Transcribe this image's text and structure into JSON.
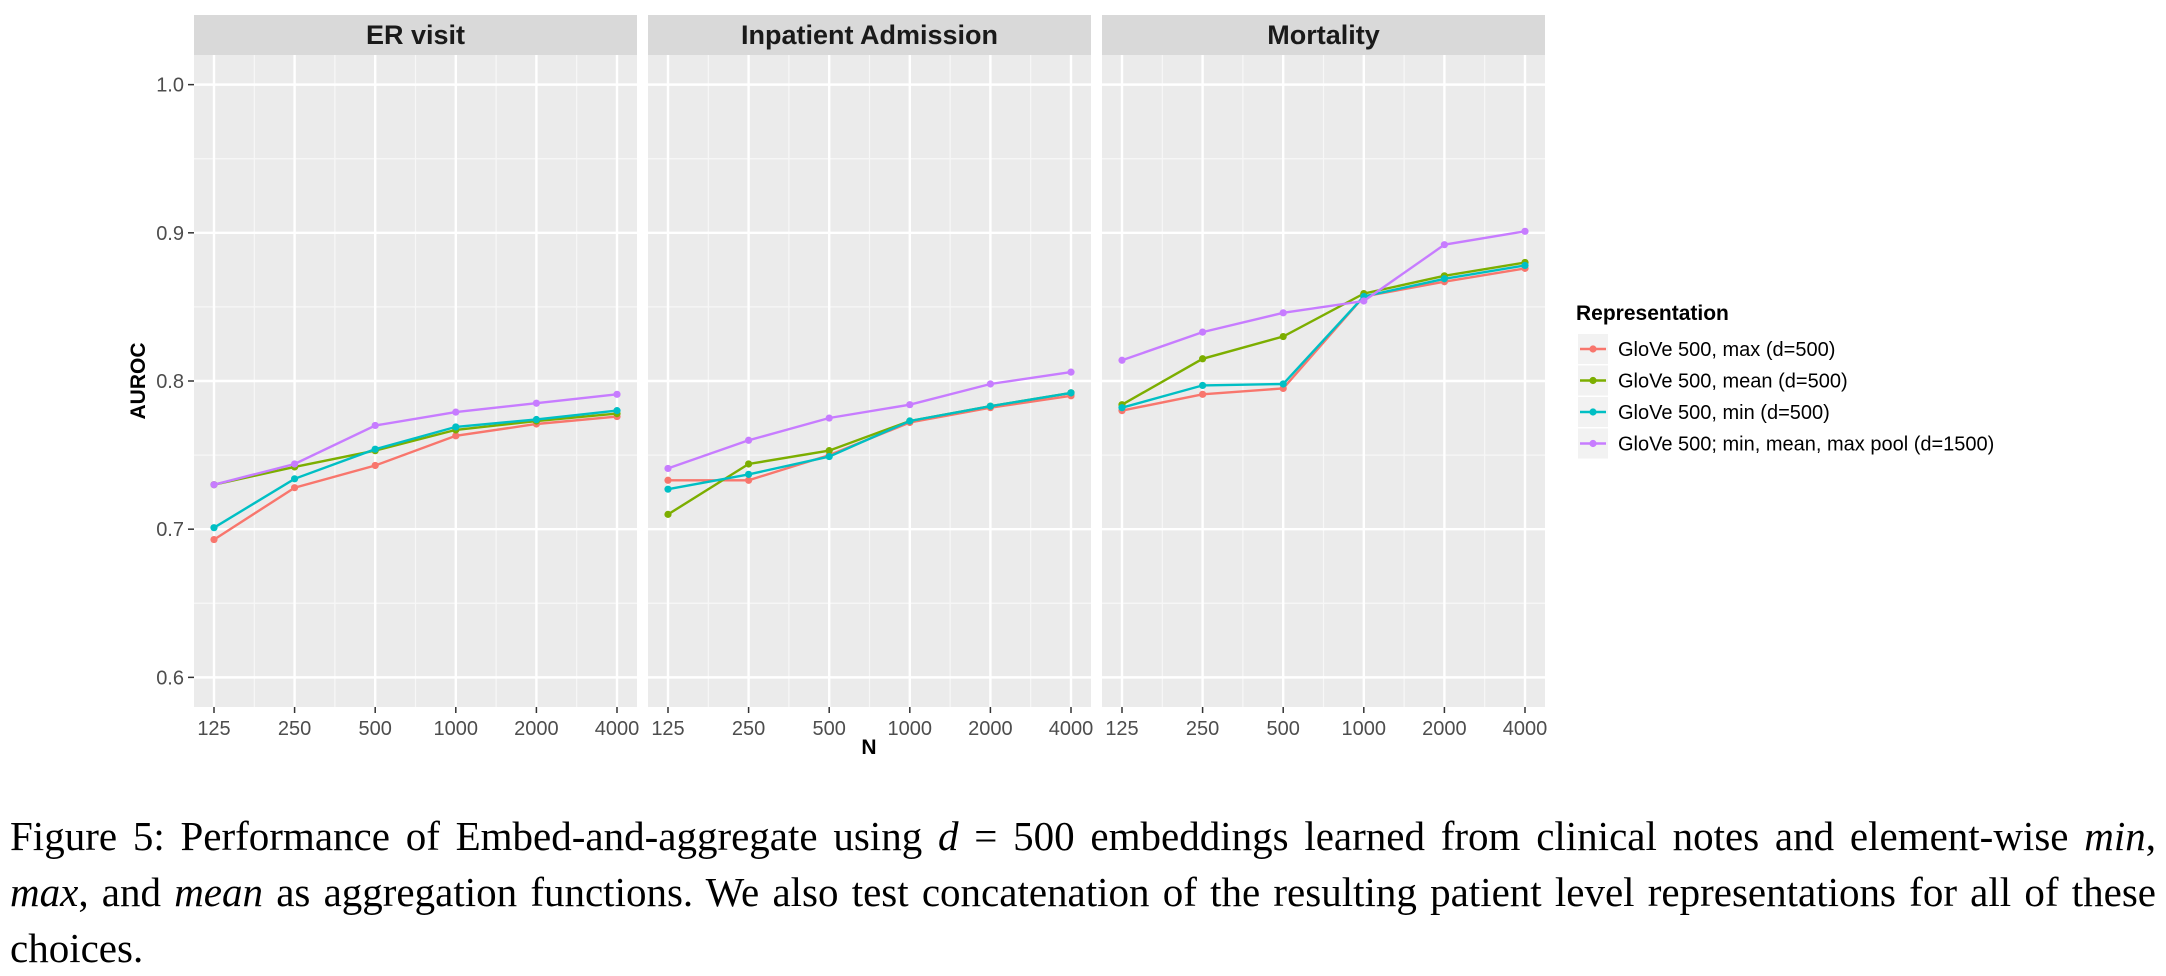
{
  "chart_data": {
    "type": "line",
    "facets": [
      "ER visit",
      "Inpatient Admission",
      "Mortality"
    ],
    "categories": [
      "125",
      "250",
      "500",
      "1000",
      "2000",
      "4000"
    ],
    "xlabel": "N",
    "ylabel": "AUROC",
    "ylim": [
      0.58,
      1.02
    ],
    "yticks": [
      "0.6",
      "0.7",
      "0.8",
      "0.9",
      "1.0"
    ],
    "ytick_values": [
      0.6,
      0.7,
      0.8,
      0.9,
      1.0
    ],
    "grid": true,
    "legend_title": "Representation",
    "legend_position": "right",
    "series": [
      {
        "name": "GloVe 500, max (d=500)",
        "color": "#F8766D",
        "panels": [
          [
            0.693,
            0.728,
            0.743,
            0.763,
            0.771,
            0.776
          ],
          [
            0.733,
            0.733,
            0.75,
            0.772,
            0.782,
            0.79
          ],
          [
            0.78,
            0.791,
            0.795,
            0.857,
            0.867,
            0.876
          ]
        ]
      },
      {
        "name": "GloVe 500, mean (d=500)",
        "color": "#7CAE00",
        "panels": [
          [
            0.73,
            0.742,
            0.753,
            0.767,
            0.773,
            0.778
          ],
          [
            0.71,
            0.744,
            0.753,
            0.773,
            0.783,
            0.792
          ],
          [
            0.784,
            0.815,
            0.83,
            0.859,
            0.871,
            0.88
          ]
        ]
      },
      {
        "name": "GloVe 500, min (d=500)",
        "color": "#00BFC4",
        "panels": [
          [
            0.701,
            0.734,
            0.754,
            0.769,
            0.774,
            0.78
          ],
          [
            0.727,
            0.737,
            0.749,
            0.773,
            0.783,
            0.792
          ],
          [
            0.782,
            0.797,
            0.798,
            0.857,
            0.869,
            0.878
          ]
        ]
      },
      {
        "name": "GloVe 500; min, mean, max pool (d=1500)",
        "color": "#C77CFF",
        "panels": [
          [
            0.73,
            0.744,
            0.77,
            0.779,
            0.785,
            0.791
          ],
          [
            0.741,
            0.76,
            0.775,
            0.784,
            0.798,
            0.806
          ],
          [
            0.814,
            0.833,
            0.846,
            0.854,
            0.892,
            0.901
          ]
        ]
      }
    ]
  },
  "caption": {
    "p1": "Figure 5: Performance of Embed-and-aggregate using ",
    "math": "d",
    "p2": " = 500 embeddings learned from clinical notes and element-wise ",
    "em_min": "min",
    "p3": ", ",
    "em_max": "max",
    "p4": ", and ",
    "em_mean": "mean",
    "p5": " as aggregation functions. We also test concatenation of the resulting patient level representations for all of these choices."
  }
}
